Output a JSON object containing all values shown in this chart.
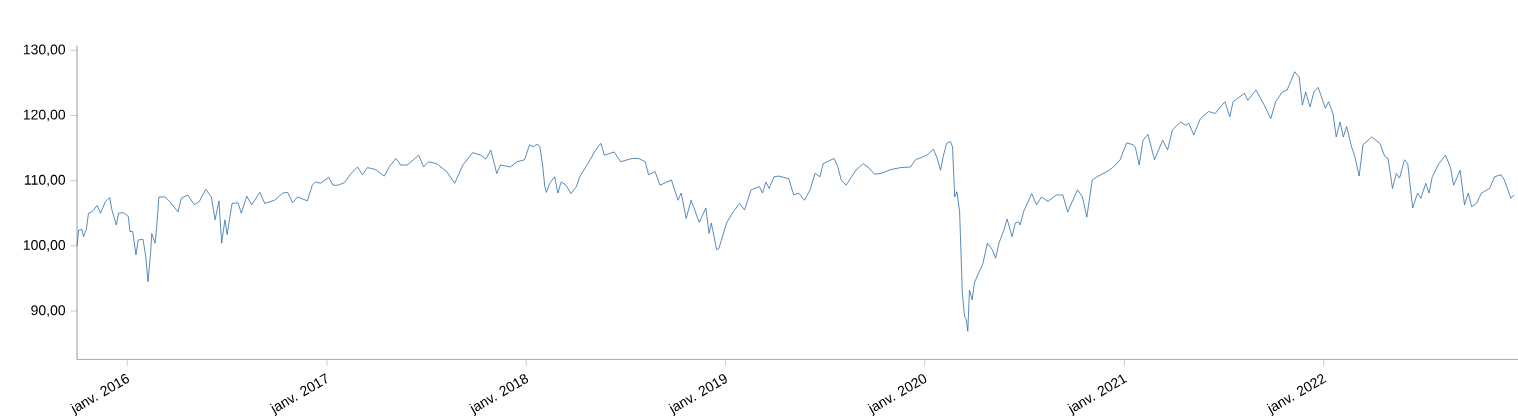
{
  "chart_data": {
    "type": "line",
    "x": [
      "2015-10-01",
      "2015-10-04",
      "2015-10-10",
      "2015-10-13",
      "2015-10-18",
      "2015-10-22",
      "2015-10-28",
      "2015-11-07",
      "2015-11-13",
      "2015-11-22",
      "2015-11-30",
      "2015-12-04",
      "2015-12-12",
      "2015-12-16",
      "2015-12-25",
      "2016-01-03",
      "2016-01-06",
      "2016-01-11",
      "2016-01-17",
      "2016-01-21",
      "2016-01-30",
      "2016-02-04",
      "2016-02-08",
      "2016-02-13",
      "2016-02-15",
      "2016-02-21",
      "2016-02-24",
      "2016-02-28",
      "2016-03-10",
      "2016-03-19",
      "2016-04-03",
      "2016-04-09",
      "2016-04-21",
      "2016-05-03",
      "2016-05-12",
      "2016-05-24",
      "2016-06-03",
      "2016-06-10",
      "2016-06-17",
      "2016-06-22",
      "2016-06-28",
      "2016-07-02",
      "2016-07-11",
      "2016-07-22",
      "2016-07-28",
      "2016-08-07",
      "2016-08-16",
      "2016-08-31",
      "2016-09-09",
      "2016-09-27",
      "2016-10-12",
      "2016-10-21",
      "2016-10-30",
      "2016-11-08",
      "2016-11-26",
      "2016-12-05",
      "2016-12-11",
      "2016-12-20",
      "2017-01-04",
      "2017-01-12",
      "2017-01-21",
      "2017-02-02",
      "2017-02-14",
      "2017-02-26",
      "2017-03-07",
      "2017-03-16",
      "2017-03-31",
      "2017-04-16",
      "2017-04-25",
      "2017-05-07",
      "2017-05-16",
      "2017-05-28",
      "2017-06-18",
      "2017-06-27",
      "2017-07-06",
      "2017-07-21",
      "2017-08-08",
      "2017-08-23",
      "2017-09-07",
      "2017-09-25",
      "2017-10-10",
      "2017-10-19",
      "2017-10-28",
      "2017-11-08",
      "2017-11-15",
      "2017-12-03",
      "2017-12-15",
      "2017-12-29",
      "2018-01-07",
      "2018-01-14",
      "2018-01-21",
      "2018-01-26",
      "2018-01-31",
      "2018-02-04",
      "2018-02-07",
      "2018-02-13",
      "2018-02-22",
      "2018-02-28",
      "2018-03-06",
      "2018-03-15",
      "2018-03-24",
      "2018-04-03",
      "2018-04-09",
      "2018-04-24",
      "2018-05-06",
      "2018-05-15",
      "2018-05-18",
      "2018-05-24",
      "2018-06-11",
      "2018-06-23",
      "2018-07-14",
      "2018-07-26",
      "2018-08-07",
      "2018-08-13",
      "2018-08-25",
      "2018-09-03",
      "2018-09-24",
      "2018-10-06",
      "2018-10-12",
      "2018-10-21",
      "2018-10-30",
      "2018-11-14",
      "2018-11-26",
      "2018-12-02",
      "2018-12-06",
      "2018-12-16",
      "2018-12-20",
      "2019-01-03",
      "2019-01-15",
      "2019-01-27",
      "2019-02-05",
      "2019-02-17",
      "2019-03-04",
      "2019-03-10",
      "2019-03-16",
      "2019-03-22",
      "2019-03-31",
      "2019-04-09",
      "2019-04-27",
      "2019-05-06",
      "2019-05-15",
      "2019-05-26",
      "2019-06-05",
      "2019-06-14",
      "2019-06-23",
      "2019-06-29",
      "2019-07-19",
      "2019-07-26",
      "2019-08-01",
      "2019-08-10",
      "2019-08-28",
      "2019-09-10",
      "2019-09-19",
      "2019-10-01",
      "2019-10-13",
      "2019-10-31",
      "2019-11-18",
      "2019-12-06",
      "2019-12-15",
      "2020-01-05",
      "2020-01-17",
      "2020-01-24",
      "2020-01-30",
      "2020-02-04",
      "2020-02-10",
      "2020-02-17",
      "2020-02-21",
      "2020-02-25",
      "2020-02-29",
      "2020-03-05",
      "2020-03-10",
      "2020-03-14",
      "2020-03-17",
      "2020-03-20",
      "2020-03-23",
      "2020-03-28",
      "2020-04-01",
      "2020-04-07",
      "2020-04-16",
      "2020-04-25",
      "2020-05-04",
      "2020-05-10",
      "2020-05-16",
      "2020-05-25",
      "2020-05-31",
      "2020-06-09",
      "2020-06-15",
      "2020-06-21",
      "2020-06-24",
      "2020-06-30",
      "2020-07-15",
      "2020-07-24",
      "2020-08-02",
      "2020-08-14",
      "2020-08-29",
      "2020-09-10",
      "2020-09-19",
      "2020-10-07",
      "2020-10-16",
      "2020-10-24",
      "2020-11-03",
      "2020-11-12",
      "2020-11-30",
      "2020-12-12",
      "2020-12-24",
      "2021-01-05",
      "2021-01-17",
      "2021-01-21",
      "2021-01-28",
      "2021-02-04",
      "2021-02-13",
      "2021-02-25",
      "2021-03-12",
      "2021-03-21",
      "2021-03-30",
      "2021-04-14",
      "2021-04-23",
      "2021-04-29",
      "2021-05-08",
      "2021-05-20",
      "2021-06-04",
      "2021-06-16",
      "2021-07-04",
      "2021-07-13",
      "2021-07-19",
      "2021-08-09",
      "2021-08-15",
      "2021-08-30",
      "2021-09-14",
      "2021-09-26",
      "2021-10-05",
      "2021-10-17",
      "2021-10-26",
      "2021-11-09",
      "2021-11-17",
      "2021-11-23",
      "2021-11-29",
      "2021-12-07",
      "2021-12-14",
      "2021-12-22",
      "2022-01-04",
      "2022-01-10",
      "2022-01-18",
      "2022-01-24",
      "2022-01-31",
      "2022-02-06",
      "2022-02-12",
      "2022-02-21",
      "2022-02-27",
      "2022-03-07",
      "2022-03-14",
      "2022-03-30",
      "2022-04-14",
      "2022-04-23",
      "2022-04-29",
      "2022-05-07",
      "2022-05-14",
      "2022-05-20",
      "2022-05-29",
      "2022-06-04",
      "2022-06-13",
      "2022-06-22",
      "2022-06-28",
      "2022-07-07",
      "2022-07-13",
      "2022-07-19",
      "2022-07-31",
      "2022-08-12",
      "2022-08-21",
      "2022-08-27",
      "2022-09-08",
      "2022-09-16",
      "2022-09-23",
      "2022-09-29",
      "2022-10-08",
      "2022-10-17",
      "2022-11-01",
      "2022-11-10",
      "2022-11-22",
      "2022-11-28",
      "2022-12-10",
      "2022-12-16"
    ],
    "series": [
      {
        "color": "#2f6fa8",
        "values": [
          100.0,
          102.4,
          102.5,
          101.4,
          102.5,
          105.0,
          105.2,
          106.2,
          105.0,
          106.8,
          107.4,
          105.5,
          103.2,
          105.0,
          105.1,
          104.5,
          102.2,
          102.2,
          98.6,
          100.9,
          101.0,
          98.3,
          94.5,
          99.1,
          101.9,
          100.4,
          102.9,
          107.5,
          107.5,
          106.8,
          105.2,
          107.3,
          107.8,
          106.3,
          106.8,
          108.7,
          107.5,
          104.0,
          106.9,
          100.4,
          104.0,
          101.7,
          106.5,
          106.6,
          105.0,
          107.6,
          106.3,
          108.2,
          106.5,
          107.0,
          108.1,
          108.2,
          106.6,
          107.5,
          106.9,
          109.3,
          109.8,
          109.6,
          110.5,
          109.3,
          109.3,
          109.7,
          111.1,
          112.1,
          110.9,
          112.0,
          111.7,
          110.7,
          112.1,
          113.4,
          112.4,
          112.4,
          113.9,
          112.1,
          112.9,
          112.6,
          111.4,
          109.6,
          112.4,
          114.3,
          113.9,
          113.3,
          114.7,
          111.1,
          112.4,
          112.1,
          112.9,
          113.2,
          115.5,
          115.2,
          115.6,
          115.2,
          112.4,
          109.1,
          108.2,
          109.6,
          110.6,
          108.1,
          109.8,
          109.3,
          108.0,
          109.1,
          110.6,
          112.6,
          114.4,
          115.5,
          115.7,
          113.9,
          114.4,
          112.9,
          113.4,
          113.4,
          112.9,
          110.9,
          111.4,
          109.3,
          110.1,
          107.0,
          108.1,
          104.2,
          107.0,
          103.6,
          105.8,
          101.9,
          103.5,
          99.4,
          99.6,
          103.5,
          105.2,
          106.5,
          105.5,
          108.6,
          109.1,
          108.1,
          109.8,
          108.8,
          110.6,
          110.7,
          110.3,
          107.8,
          108.1,
          107.0,
          108.6,
          111.1,
          110.6,
          112.6,
          113.4,
          112.1,
          110.1,
          109.3,
          111.6,
          112.6,
          112.1,
          111.0,
          111.1,
          111.7,
          112.0,
          112.1,
          113.2,
          113.9,
          114.8,
          113.4,
          111.6,
          113.7,
          115.7,
          116.0,
          115.2,
          107.5,
          108.3,
          105.2,
          92.7,
          89.2,
          88.7,
          86.9,
          93.2,
          91.7,
          94.3,
          95.5,
          97.1,
          100.4,
          99.4,
          98.1,
          100.4,
          102.4,
          104.1,
          101.4,
          103.5,
          103.7,
          103.2,
          105.2,
          108.0,
          106.3,
          107.5,
          106.8,
          107.8,
          107.8,
          105.2,
          108.6,
          107.5,
          104.4,
          110.1,
          110.6,
          111.4,
          112.1,
          113.2,
          115.8,
          115.5,
          115.1,
          112.4,
          116.2,
          117.1,
          113.2,
          116.2,
          114.7,
          117.8,
          119.0,
          118.5,
          118.8,
          117.0,
          119.5,
          120.6,
          120.3,
          122.1,
          119.8,
          122.1,
          123.4,
          122.3,
          123.9,
          121.6,
          119.5,
          122.1,
          123.6,
          123.9,
          126.7,
          125.9,
          121.6,
          123.6,
          121.3,
          123.6,
          124.3,
          121.1,
          122.1,
          120.3,
          116.7,
          119.0,
          116.7,
          118.3,
          115.2,
          113.7,
          110.7,
          115.5,
          116.7,
          115.7,
          113.7,
          113.4,
          108.8,
          111.1,
          110.4,
          113.2,
          112.6,
          105.8,
          108.1,
          107.3,
          109.6,
          108.1,
          110.6,
          112.6,
          113.9,
          112.1,
          109.3,
          111.6,
          106.3,
          108.1,
          106.0,
          106.5,
          108.1,
          108.8,
          110.6,
          110.9,
          110.1,
          107.3,
          107.8
        ]
      }
    ],
    "xlim": [
      "2015-10-01",
      "2022-12-23"
    ],
    "ylim": [
      82.6,
      130.7
    ],
    "xticks": [
      {
        "value": "2016-01-01",
        "label": "janv. 2016"
      },
      {
        "value": "2017-01-01",
        "label": "janv. 2017"
      },
      {
        "value": "2018-01-01",
        "label": "janv. 2018"
      },
      {
        "value": "2019-01-01",
        "label": "janv. 2019"
      },
      {
        "value": "2020-01-01",
        "label": "janv. 2020"
      },
      {
        "value": "2021-01-01",
        "label": "janv. 2021"
      },
      {
        "value": "2022-01-01",
        "label": "janv. 2022"
      }
    ],
    "yticks": [
      {
        "value": 90,
        "label": "90,00"
      },
      {
        "value": 100,
        "label": "100,00"
      },
      {
        "value": 110,
        "label": "110,00"
      },
      {
        "value": 120,
        "label": "120,00"
      },
      {
        "value": 130,
        "label": "130,00"
      }
    ],
    "grid": false
  }
}
